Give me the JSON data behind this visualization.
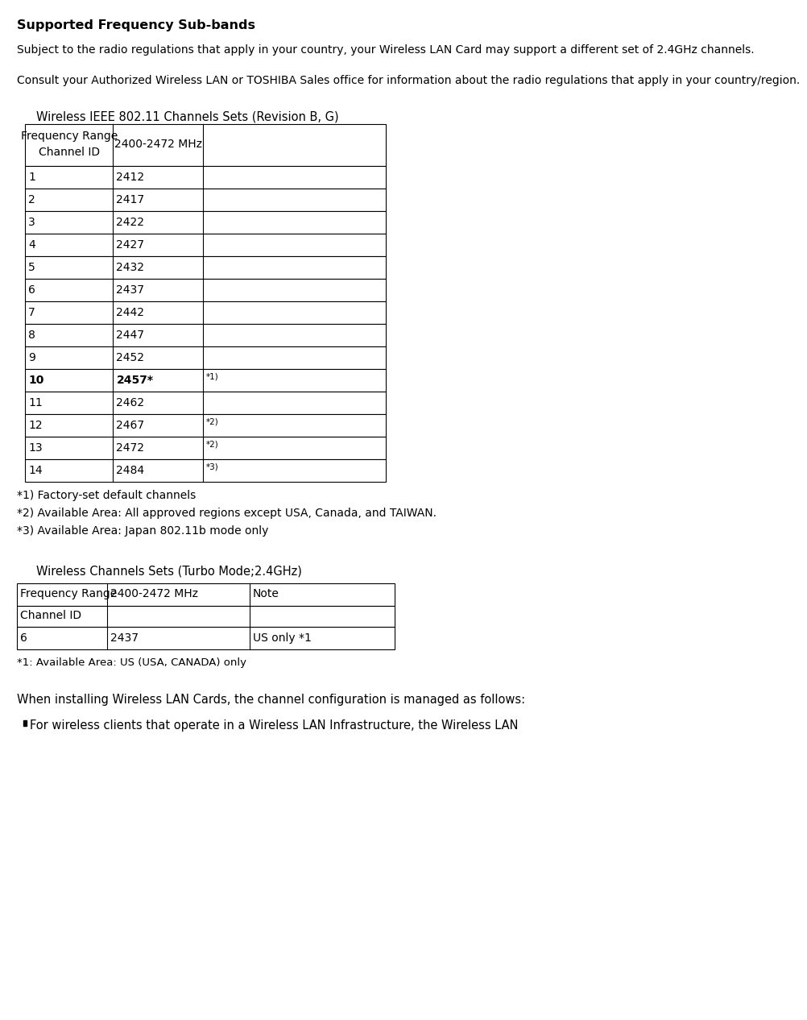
{
  "title": "Supported Frequency Sub-bands",
  "para1": "Subject to the radio regulations that apply in your country, your Wireless LAN Card may support a different set of 2.4GHz channels.",
  "para2": "Consult your Authorized Wireless LAN or TOSHIBA Sales office for information about the radio regulations that apply in your country/region.",
  "table1_title": "Wireless IEEE 802.11 Channels Sets (Revision B, G)",
  "table1_header1": "Frequency Range",
  "table1_header2": "Channel ID",
  "table1_header_col2": "2400-2472 MHz",
  "table1_rows": [
    [
      "1",
      "2412",
      ""
    ],
    [
      "2",
      "2417",
      ""
    ],
    [
      "3",
      "2422",
      ""
    ],
    [
      "4",
      "2427",
      ""
    ],
    [
      "5",
      "2432",
      ""
    ],
    [
      "6",
      "2437",
      ""
    ],
    [
      "7",
      "2442",
      ""
    ],
    [
      "8",
      "2447",
      ""
    ],
    [
      "9",
      "2452",
      ""
    ],
    [
      "10",
      "2457*",
      "*1)"
    ],
    [
      "11",
      "2462",
      ""
    ],
    [
      "12",
      "2467",
      "*2)"
    ],
    [
      "13",
      "2472",
      "*2)"
    ],
    [
      "14",
      "2484",
      "*3)"
    ]
  ],
  "table1_bold_row": 9,
  "footnotes1": [
    "*1) Factory-set default channels",
    "*2) Available Area: All approved regions except USA, Canada, and TAIWAN.",
    "*3) Available Area: Japan 802.11b mode only"
  ],
  "table2_title": "Wireless Channels Sets (Turbo Mode;2.4GHz)",
  "table2_header": [
    "Frequency Range",
    "2400-2472 MHz",
    "Note"
  ],
  "table2_header2": [
    "Channel ID",
    "",
    ""
  ],
  "table2_rows": [
    [
      "6",
      "2437",
      "US only *1"
    ]
  ],
  "footnote2": "*1: Available Area: US (USA, CANADA) only",
  "bottom_para": "When installing Wireless LAN Cards, the channel configuration is managed as follows:",
  "bottom_bullet": "For wireless clients that operate in a Wireless LAN Infrastructure, the Wireless LAN",
  "bg_color": "#ffffff",
  "text_color": "#000000",
  "table_border_color": "#000000"
}
